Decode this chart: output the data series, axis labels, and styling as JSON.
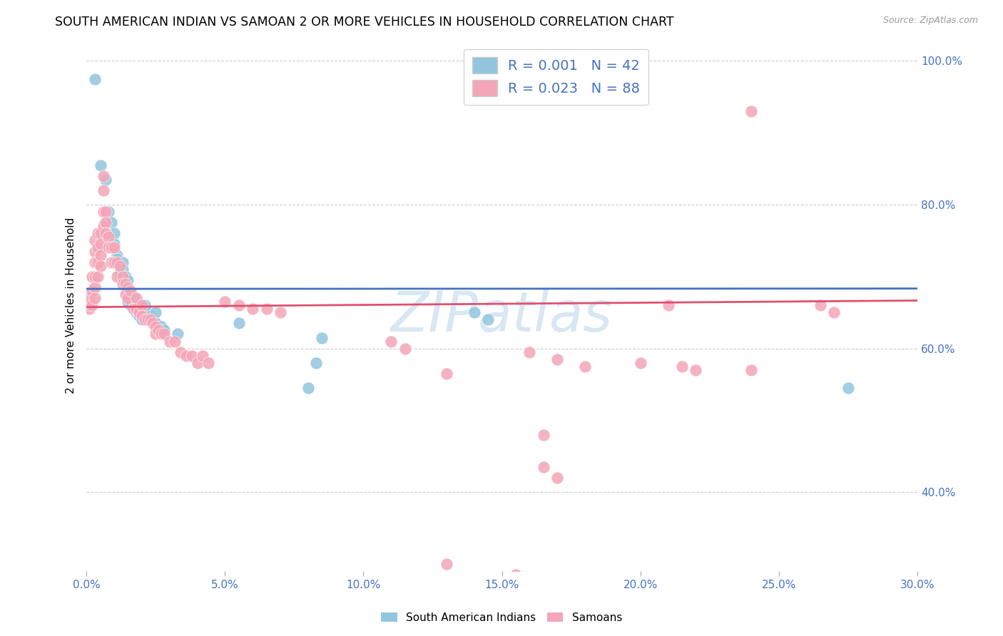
{
  "title": "SOUTH AMERICAN INDIAN VS SAMOAN 2 OR MORE VEHICLES IN HOUSEHOLD CORRELATION CHART",
  "source": "Source: ZipAtlas.com",
  "xlim": [
    0.0,
    0.3
  ],
  "ylim": [
    0.29,
    1.03
  ],
  "ylabel": "2 or more Vehicles in Household",
  "color_blue": "#92c5de",
  "color_pink": "#f4a6b8",
  "trend_color_blue": "#4472c4",
  "trend_color_pink": "#e05070",
  "watermark": "ZIPatlas",
  "blue_points": [
    [
      0.003,
      0.975
    ],
    [
      0.005,
      0.855
    ],
    [
      0.007,
      0.835
    ],
    [
      0.008,
      0.79
    ],
    [
      0.009,
      0.775
    ],
    [
      0.01,
      0.76
    ],
    [
      0.01,
      0.745
    ],
    [
      0.011,
      0.73
    ],
    [
      0.011,
      0.725
    ],
    [
      0.012,
      0.715
    ],
    [
      0.012,
      0.705
    ],
    [
      0.013,
      0.72
    ],
    [
      0.013,
      0.71
    ],
    [
      0.014,
      0.7
    ],
    [
      0.014,
      0.685
    ],
    [
      0.015,
      0.695
    ],
    [
      0.015,
      0.68
    ],
    [
      0.015,
      0.665
    ],
    [
      0.016,
      0.675
    ],
    [
      0.016,
      0.66
    ],
    [
      0.017,
      0.67
    ],
    [
      0.018,
      0.66
    ],
    [
      0.018,
      0.65
    ],
    [
      0.019,
      0.645
    ],
    [
      0.02,
      0.65
    ],
    [
      0.02,
      0.64
    ],
    [
      0.021,
      0.66
    ],
    [
      0.022,
      0.65
    ],
    [
      0.023,
      0.645
    ],
    [
      0.024,
      0.64
    ],
    [
      0.025,
      0.65
    ],
    [
      0.025,
      0.635
    ],
    [
      0.027,
      0.63
    ],
    [
      0.028,
      0.625
    ],
    [
      0.033,
      0.62
    ],
    [
      0.055,
      0.635
    ],
    [
      0.08,
      0.545
    ],
    [
      0.083,
      0.58
    ],
    [
      0.085,
      0.615
    ],
    [
      0.14,
      0.65
    ],
    [
      0.145,
      0.64
    ],
    [
      0.275,
      0.545
    ]
  ],
  "pink_points": [
    [
      0.001,
      0.67
    ],
    [
      0.001,
      0.655
    ],
    [
      0.002,
      0.7
    ],
    [
      0.002,
      0.68
    ],
    [
      0.002,
      0.66
    ],
    [
      0.003,
      0.75
    ],
    [
      0.003,
      0.735
    ],
    [
      0.003,
      0.72
    ],
    [
      0.003,
      0.7
    ],
    [
      0.003,
      0.685
    ],
    [
      0.003,
      0.67
    ],
    [
      0.004,
      0.76
    ],
    [
      0.004,
      0.74
    ],
    [
      0.004,
      0.72
    ],
    [
      0.004,
      0.7
    ],
    [
      0.005,
      0.76
    ],
    [
      0.005,
      0.745
    ],
    [
      0.005,
      0.73
    ],
    [
      0.005,
      0.715
    ],
    [
      0.006,
      0.84
    ],
    [
      0.006,
      0.82
    ],
    [
      0.006,
      0.79
    ],
    [
      0.006,
      0.77
    ],
    [
      0.007,
      0.79
    ],
    [
      0.007,
      0.775
    ],
    [
      0.007,
      0.76
    ],
    [
      0.008,
      0.755
    ],
    [
      0.008,
      0.74
    ],
    [
      0.009,
      0.74
    ],
    [
      0.009,
      0.72
    ],
    [
      0.01,
      0.74
    ],
    [
      0.01,
      0.72
    ],
    [
      0.011,
      0.72
    ],
    [
      0.011,
      0.7
    ],
    [
      0.012,
      0.715
    ],
    [
      0.013,
      0.7
    ],
    [
      0.013,
      0.69
    ],
    [
      0.014,
      0.69
    ],
    [
      0.014,
      0.675
    ],
    [
      0.015,
      0.685
    ],
    [
      0.015,
      0.67
    ],
    [
      0.016,
      0.68
    ],
    [
      0.017,
      0.655
    ],
    [
      0.018,
      0.67
    ],
    [
      0.018,
      0.655
    ],
    [
      0.019,
      0.65
    ],
    [
      0.02,
      0.66
    ],
    [
      0.02,
      0.645
    ],
    [
      0.021,
      0.64
    ],
    [
      0.022,
      0.64
    ],
    [
      0.023,
      0.64
    ],
    [
      0.024,
      0.635
    ],
    [
      0.025,
      0.63
    ],
    [
      0.025,
      0.62
    ],
    [
      0.026,
      0.625
    ],
    [
      0.027,
      0.62
    ],
    [
      0.028,
      0.62
    ],
    [
      0.03,
      0.61
    ],
    [
      0.032,
      0.61
    ],
    [
      0.034,
      0.595
    ],
    [
      0.036,
      0.59
    ],
    [
      0.038,
      0.59
    ],
    [
      0.04,
      0.58
    ],
    [
      0.042,
      0.59
    ],
    [
      0.044,
      0.58
    ],
    [
      0.05,
      0.665
    ],
    [
      0.055,
      0.66
    ],
    [
      0.06,
      0.655
    ],
    [
      0.065,
      0.655
    ],
    [
      0.07,
      0.65
    ],
    [
      0.11,
      0.61
    ],
    [
      0.115,
      0.6
    ],
    [
      0.13,
      0.565
    ],
    [
      0.16,
      0.595
    ],
    [
      0.17,
      0.585
    ],
    [
      0.18,
      0.575
    ],
    [
      0.2,
      0.58
    ],
    [
      0.21,
      0.66
    ],
    [
      0.215,
      0.575
    ],
    [
      0.22,
      0.57
    ],
    [
      0.24,
      0.57
    ],
    [
      0.165,
      0.48
    ],
    [
      0.165,
      0.435
    ],
    [
      0.17,
      0.42
    ],
    [
      0.24,
      0.93
    ],
    [
      0.13,
      0.3
    ],
    [
      0.155,
      0.285
    ],
    [
      0.265,
      0.66
    ],
    [
      0.27,
      0.65
    ]
  ]
}
